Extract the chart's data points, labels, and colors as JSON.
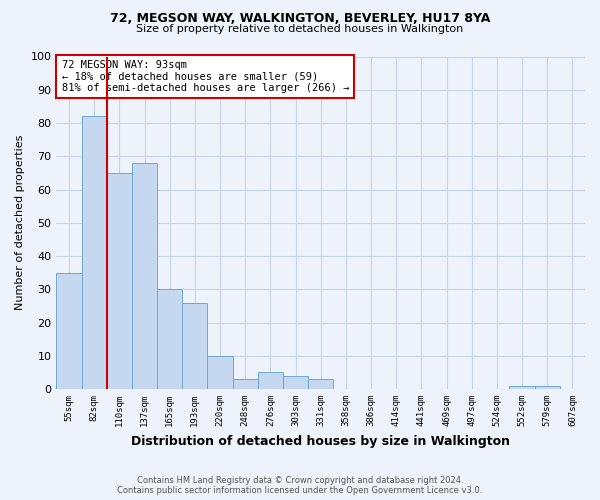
{
  "title1": "72, MEGSON WAY, WALKINGTON, BEVERLEY, HU17 8YA",
  "title2": "Size of property relative to detached houses in Walkington",
  "xlabel": "Distribution of detached houses by size in Walkington",
  "ylabel": "Number of detached properties",
  "footnote1": "Contains HM Land Registry data © Crown copyright and database right 2024.",
  "footnote2": "Contains public sector information licensed under the Open Government Licence v3.0.",
  "bin_labels": [
    "55sqm",
    "82sqm",
    "110sqm",
    "137sqm",
    "165sqm",
    "193sqm",
    "220sqm",
    "248sqm",
    "276sqm",
    "303sqm",
    "331sqm",
    "358sqm",
    "386sqm",
    "414sqm",
    "441sqm",
    "469sqm",
    "497sqm",
    "524sqm",
    "552sqm",
    "579sqm",
    "607sqm"
  ],
  "bar_heights": [
    35,
    82,
    65,
    68,
    30,
    26,
    10,
    3,
    5,
    4,
    3,
    0,
    0,
    0,
    0,
    0,
    0,
    0,
    1,
    1,
    0
  ],
  "bar_color": "#c5d8f0",
  "bar_edge_color": "#6aaad4",
  "vline_x": 1.5,
  "vline_color": "#cc0000",
  "annotation_text": "72 MEGSON WAY: 93sqm\n← 18% of detached houses are smaller (59)\n81% of semi-detached houses are larger (266) →",
  "annotation_box_color": "white",
  "annotation_box_edge_color": "#cc0000",
  "ylim": [
    0,
    100
  ],
  "yticks": [
    0,
    10,
    20,
    30,
    40,
    50,
    60,
    70,
    80,
    90,
    100
  ],
  "background_color": "#eef3fb",
  "grid_color": "#c8d4e8"
}
